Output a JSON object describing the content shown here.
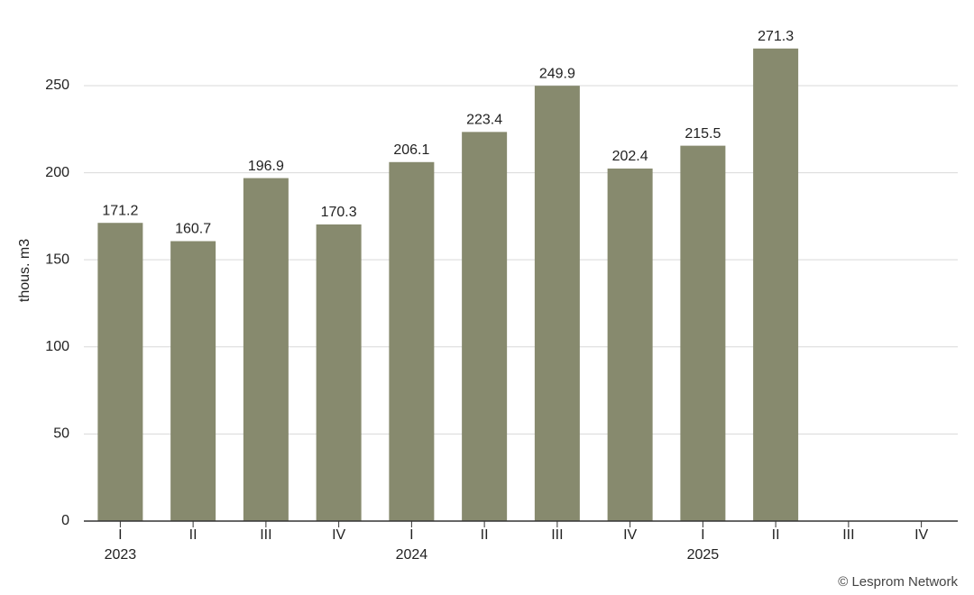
{
  "chart_data": {
    "type": "bar",
    "y_label": "thous. m3",
    "categories": [
      "I",
      "II",
      "III",
      "IV",
      "I",
      "II",
      "III",
      "IV",
      "I",
      "II",
      "III",
      "IV"
    ],
    "years": [
      "2023",
      "2024",
      "2025"
    ],
    "values": [
      171.2,
      160.7,
      196.9,
      170.3,
      206.1,
      223.4,
      249.9,
      202.4,
      215.5,
      271.3,
      null,
      null
    ],
    "color": "#878a6e",
    "ylim": [
      0,
      280
    ],
    "yticks": [
      0,
      50,
      100,
      150,
      200,
      250
    ],
    "grid": true,
    "source": "© Lesprom Network"
  }
}
